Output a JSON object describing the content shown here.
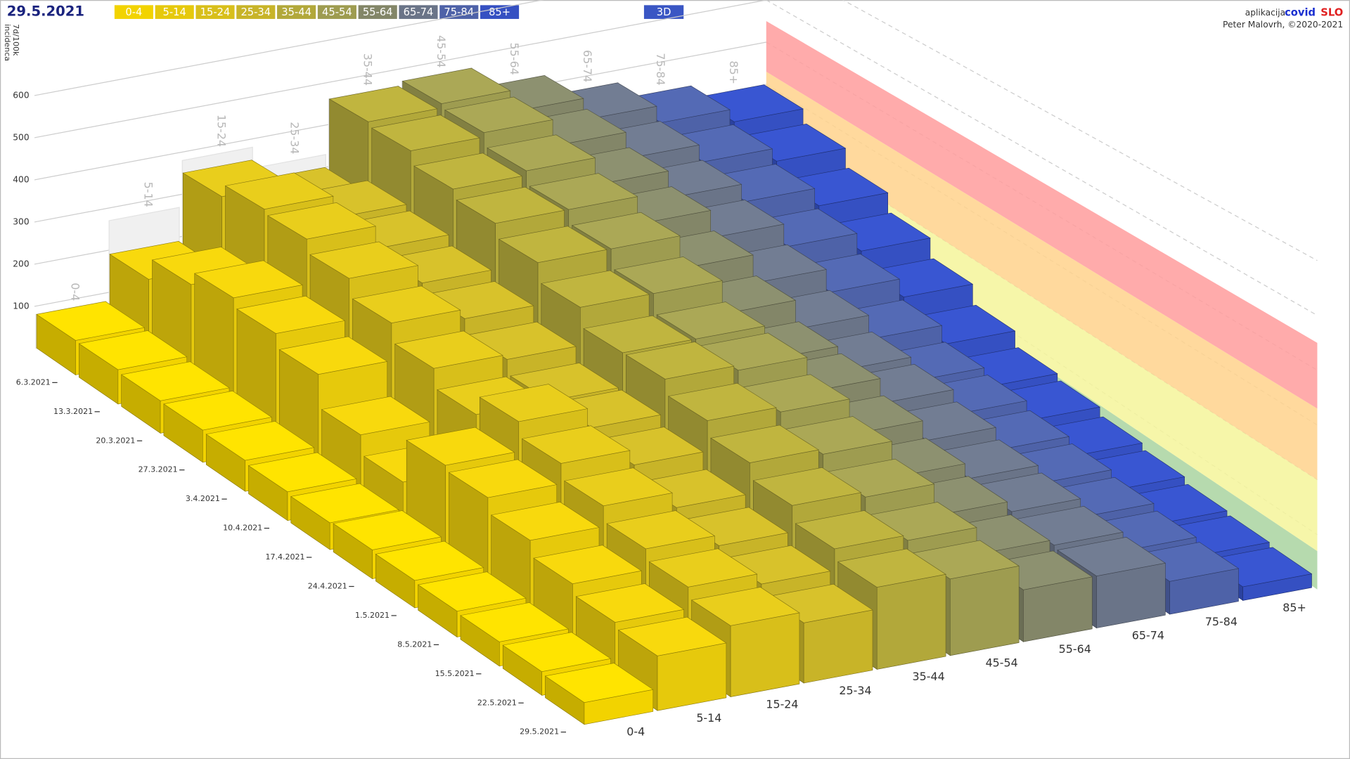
{
  "header": {
    "date": "29.5.2021",
    "view_button": "3D",
    "app_prefix": "aplikacija",
    "app_name_a": "covid",
    "app_name_b": "SLO",
    "credit": "Peter Malovrh, ©2020-2021"
  },
  "chart_data": {
    "type": "bar3d",
    "ylabel": [
      "7d/100k",
      "incidenca"
    ],
    "categories": [
      "6.3.2021",
      "13.3.2021",
      "20.3.2021",
      "27.3.2021",
      "3.4.2021",
      "10.4.2021",
      "17.4.2021",
      "24.4.2021",
      "1.5.2021",
      "8.5.2021",
      "15.5.2021",
      "22.5.2021",
      "29.5.2021"
    ],
    "ylim": [
      0,
      700
    ],
    "yticks": [
      100,
      200,
      300,
      400,
      500,
      600
    ],
    "grid": true,
    "threshold_bands": [
      {
        "from": 0,
        "to": 70,
        "color": "#a9d3a0"
      },
      {
        "from": 70,
        "to": 200,
        "color": "#f5f59a"
      },
      {
        "from": 200,
        "to": 330,
        "color": "#ffd28c"
      },
      {
        "from": 330,
        "to": 450,
        "color": "#ff9c9c"
      }
    ],
    "series": [
      {
        "name": "0-4",
        "color": "#f2d300",
        "values": [
          80,
          78,
          72,
          70,
          66,
          60,
          55,
          58,
          54,
          50,
          46,
          44,
          40
        ]
      },
      {
        "name": "5-14",
        "color": "#e6c90c",
        "values": [
          190,
          240,
          270,
          250,
          220,
          150,
          110,
          200,
          190,
          160,
          130,
          110,
          100
        ]
      },
      {
        "name": "15-24",
        "color": "#d8bf1a",
        "values": [
          350,
          380,
          370,
          340,
          300,
          260,
          220,
          260,
          230,
          200,
          170,
          150,
          130
        ]
      },
      {
        "name": "25-34",
        "color": "#c8b428",
        "values": [
          300,
          330,
          320,
          300,
          280,
          250,
          220,
          220,
          200,
          170,
          150,
          130,
          110
        ]
      },
      {
        "name": "35-44",
        "color": "#b2a83a",
        "values": [
          460,
          450,
          420,
          400,
          370,
          330,
          290,
          290,
          260,
          230,
          200,
          170,
          150
        ]
      },
      {
        "name": "45-54",
        "color": "#9e9c50",
        "values": [
          470,
          460,
          430,
          400,
          370,
          330,
          290,
          280,
          250,
          220,
          190,
          160,
          140
        ]
      },
      {
        "name": "55-64",
        "color": "#838668",
        "values": [
          420,
          400,
          370,
          340,
          300,
          260,
          220,
          210,
          180,
          150,
          130,
          110,
          95
        ]
      },
      {
        "name": "65-74",
        "color": "#6a7488",
        "values": [
          370,
          340,
          310,
          280,
          240,
          200,
          170,
          160,
          140,
          120,
          110,
          100,
          95
        ]
      },
      {
        "name": "75-84",
        "color": "#4e62a8",
        "values": [
          330,
          300,
          270,
          230,
          190,
          150,
          120,
          110,
          95,
          85,
          75,
          65,
          60
        ]
      },
      {
        "name": "85+",
        "color": "#3550c2",
        "values": [
          300,
          270,
          230,
          190,
          150,
          110,
          80,
          70,
          55,
          45,
          35,
          30,
          25
        ]
      }
    ]
  }
}
